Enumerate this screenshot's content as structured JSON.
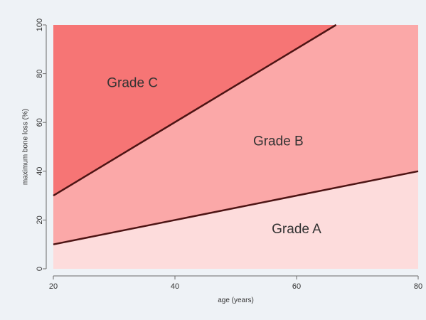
{
  "chart_data": {
    "type": "area",
    "xlabel": "age (years)",
    "ylabel": "maximum bone loss (%)",
    "xlim": [
      20,
      80
    ],
    "ylim": [
      0,
      100
    ],
    "x_ticks": [
      20,
      40,
      60,
      80
    ],
    "y_ticks": [
      0,
      20,
      40,
      60,
      80,
      100
    ],
    "grid": false,
    "lines": [
      {
        "x": [
          20,
          80
        ],
        "y": [
          10,
          40
        ]
      },
      {
        "x": [
          20,
          66.5
        ],
        "y": [
          30,
          100
        ]
      }
    ],
    "regions": [
      {
        "label": "Grade A",
        "color": "#fddcdc",
        "label_x": 60,
        "label_y": 16
      },
      {
        "label": "Grade B",
        "color": "#fba8a8",
        "label_x": 57,
        "label_y": 52
      },
      {
        "label": "Grade C",
        "color": "#f67575",
        "label_x": 33,
        "label_y": 76
      }
    ],
    "colors": {
      "line": "#4d1414",
      "background": "#eef2f6",
      "axis": "#6b6b6b",
      "text": "#333333"
    }
  }
}
